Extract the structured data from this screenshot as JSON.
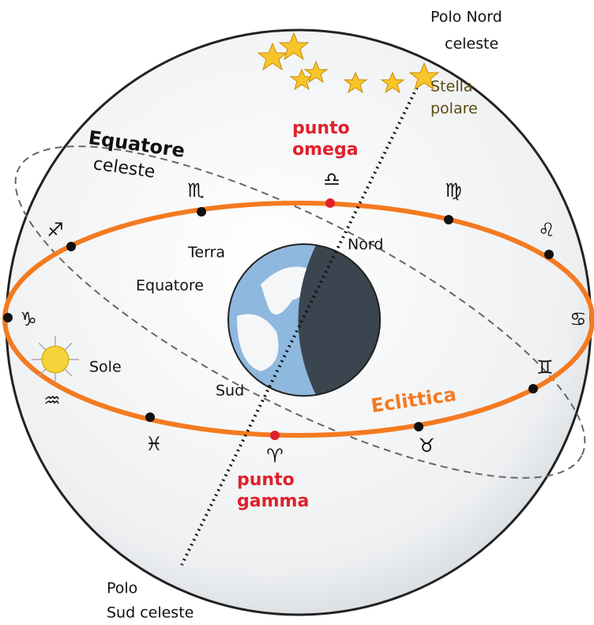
{
  "labels": {
    "polo_nord": [
      "Polo Nord",
      "celeste"
    ],
    "stella_polare": [
      "Stella",
      "polare"
    ],
    "punto_omega": [
      "punto",
      "omega"
    ],
    "equatore_celeste": [
      "Equatore",
      "celeste"
    ],
    "terra": "Terra",
    "nord": "Nord",
    "equatore": "Equatore",
    "sole": "Sole",
    "sud": "Sud",
    "eclittica": "Eclittica",
    "punto_gamma": [
      "punto",
      "gamma"
    ],
    "polo_sud": [
      "Polo",
      "Sud celeste"
    ]
  },
  "zodiac": [
    "♏",
    "♍",
    "♌",
    "♐",
    "♑",
    "♋",
    "♊",
    "♉",
    "♓",
    "♒",
    "♈",
    "♎"
  ]
}
